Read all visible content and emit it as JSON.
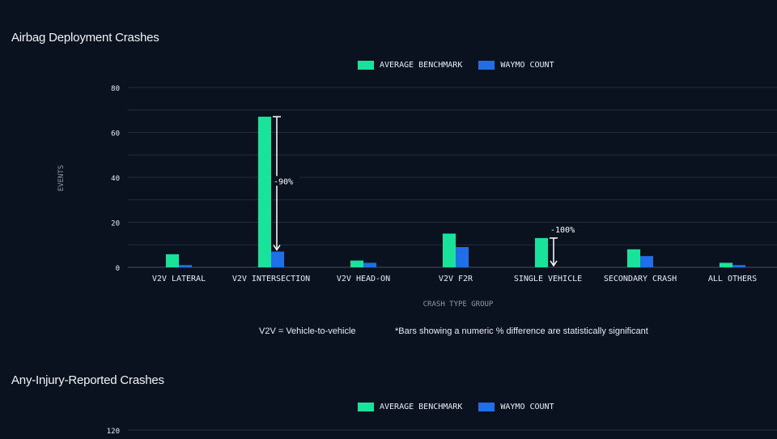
{
  "sections": [
    {
      "title": "Airbag Deployment Crashes"
    },
    {
      "title": "Any-Injury-Reported Crashes"
    }
  ],
  "legend": {
    "benchmark_label": "AVERAGE BENCHMARK",
    "waymo_label": "WAYMO COUNT",
    "benchmark_color": "#19e39a",
    "waymo_color": "#1f6fe8"
  },
  "footnotes": {
    "v2v_definition": "V2V = Vehicle-to-vehicle",
    "significance": "*Bars showing a numeric % difference are statistically significant"
  },
  "chart_data": [
    {
      "type": "bar",
      "title": "Airbag Deployment Crashes",
      "xlabel": "CRASH TYPE GROUP",
      "ylabel": "EVENTS",
      "ylim": [
        0,
        80
      ],
      "yticks": [
        0,
        20,
        40,
        60,
        80
      ],
      "grid": true,
      "legend_position": "top-center",
      "categories": [
        "V2V LATERAL",
        "V2V INTERSECTION",
        "V2V HEAD-ON",
        "V2V F2R",
        "SINGLE VEHICLE",
        "SECONDARY CRASH",
        "ALL OTHERS"
      ],
      "series": [
        {
          "name": "AVERAGE BENCHMARK",
          "values": [
            5.8,
            67,
            3,
            15,
            13,
            8,
            2
          ]
        },
        {
          "name": "WAYMO COUNT",
          "values": [
            1,
            7,
            2,
            9,
            0,
            5,
            1
          ]
        }
      ],
      "annotations": [
        {
          "category": "V2V INTERSECTION",
          "text": "-90%"
        },
        {
          "category": "SINGLE VEHICLE",
          "text": "-100%"
        }
      ]
    },
    {
      "type": "bar",
      "title": "Any-Injury-Reported Crashes",
      "legend_position": "top-center",
      "yticks": [
        120
      ],
      "grid": true,
      "series": [
        {
          "name": "AVERAGE BENCHMARK",
          "values": []
        },
        {
          "name": "WAYMO COUNT",
          "values": []
        }
      ]
    }
  ]
}
